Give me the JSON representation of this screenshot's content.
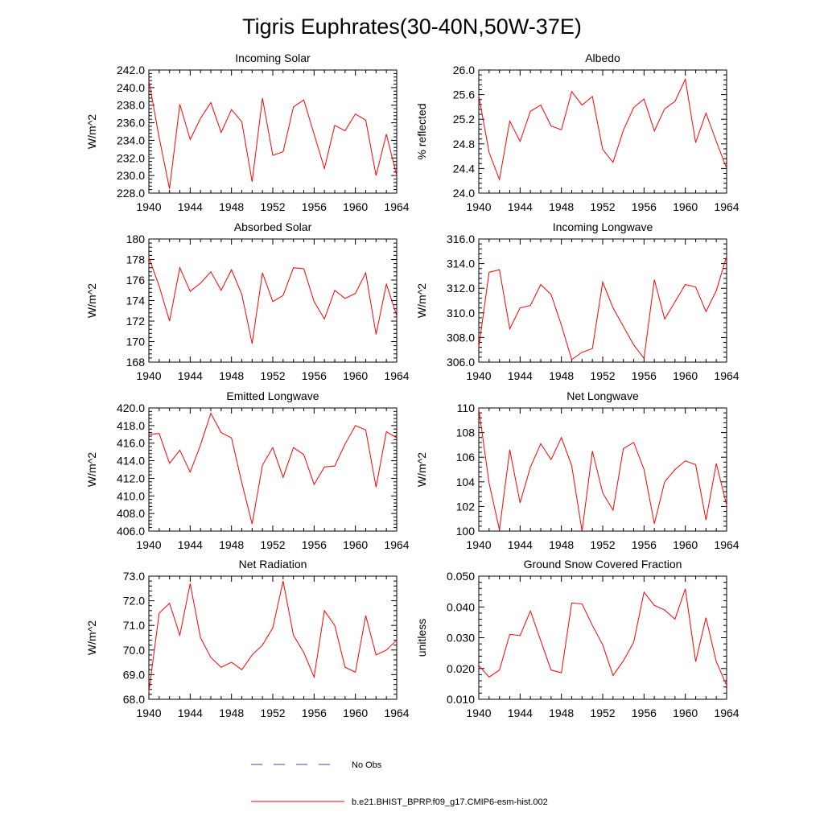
{
  "figure": {
    "title": "Tigris Euphrates(30-40N,50W-37E)",
    "colors": {
      "model": "#ff0000",
      "obs": "#4040c0",
      "axis": "#000000"
    }
  },
  "legend": {
    "obs_label": "No Obs",
    "model_label": "b.e21.BHIST_BPRP.f09_g17.CMIP6-esm-hist.002"
  },
  "chart_data": [
    {
      "type": "line",
      "title": "Incoming Solar",
      "ylabel": "W/m^2",
      "xlim": [
        1940,
        1964
      ],
      "ylim": [
        228,
        242
      ],
      "xticks": [
        "1940",
        "1944",
        "1948",
        "1952",
        "1956",
        "1960",
        "1964"
      ],
      "yticks": [
        "228.0",
        "230.0",
        "232.0",
        "234.0",
        "236.0",
        "238.0",
        "240.0",
        "242.0"
      ],
      "x": [
        1940,
        1941,
        1942,
        1943,
        1944,
        1945,
        1946,
        1947,
        1948,
        1949,
        1950,
        1951,
        1952,
        1953,
        1954,
        1955,
        1956,
        1957,
        1958,
        1959,
        1960,
        1961,
        1962,
        1963,
        1964
      ],
      "series": [
        {
          "values": [
            240.8,
            234.3,
            228.5,
            238.1,
            234.1,
            236.5,
            238.3,
            234.9,
            237.5,
            236.1,
            229.3,
            238.8,
            232.3,
            232.7,
            237.8,
            238.6,
            234.7,
            230.8,
            235.7,
            235.1,
            237.0,
            236.3,
            230.0,
            234.7,
            230.0
          ]
        }
      ]
    },
    {
      "type": "line",
      "title": "Albedo",
      "ylabel": "% reflected",
      "xlim": [
        1940,
        1964
      ],
      "ylim": [
        24.0,
        26.0
      ],
      "xticks": [
        "1940",
        "1944",
        "1948",
        "1952",
        "1956",
        "1960",
        "1964"
      ],
      "yticks": [
        "24.0",
        "24.4",
        "24.8",
        "25.2",
        "25.6",
        "26.0"
      ],
      "x": [
        1940,
        1941,
        1942,
        1943,
        1944,
        1945,
        1946,
        1947,
        1948,
        1949,
        1950,
        1951,
        1952,
        1953,
        1954,
        1955,
        1956,
        1957,
        1958,
        1959,
        1960,
        1961,
        1962,
        1963,
        1964
      ],
      "series": [
        {
          "values": [
            25.58,
            24.66,
            24.22,
            25.17,
            24.84,
            25.33,
            25.43,
            25.09,
            25.03,
            25.65,
            25.43,
            25.57,
            24.71,
            24.5,
            25.02,
            25.39,
            25.53,
            25.01,
            25.37,
            25.49,
            25.85,
            24.82,
            25.3,
            24.84,
            24.4
          ]
        }
      ]
    },
    {
      "type": "line",
      "title": "Absorbed Solar",
      "ylabel": "W/m^2",
      "xlim": [
        1940,
        1964
      ],
      "ylim": [
        168,
        180
      ],
      "xticks": [
        "1940",
        "1944",
        "1948",
        "1952",
        "1956",
        "1960",
        "1964"
      ],
      "yticks": [
        "168",
        "170",
        "172",
        "174",
        "176",
        "178",
        "180"
      ],
      "x": [
        1940,
        1941,
        1942,
        1943,
        1944,
        1945,
        1946,
        1947,
        1948,
        1949,
        1950,
        1951,
        1952,
        1953,
        1954,
        1955,
        1956,
        1957,
        1958,
        1959,
        1960,
        1961,
        1962,
        1963,
        1964
      ],
      "series": [
        {
          "values": [
            178.2,
            175.4,
            172.0,
            177.2,
            174.9,
            175.7,
            176.8,
            175.0,
            177.0,
            174.6,
            169.8,
            176.7,
            173.9,
            174.5,
            177.2,
            177.1,
            173.9,
            172.2,
            175.0,
            174.2,
            174.7,
            176.7,
            170.7,
            175.6,
            172.5
          ]
        }
      ]
    },
    {
      "type": "line",
      "title": "Incoming Longwave",
      "ylabel": "W/m^2",
      "xlim": [
        1940,
        1964
      ],
      "ylim": [
        306.0,
        316.0
      ],
      "xticks": [
        "1940",
        "1944",
        "1948",
        "1952",
        "1956",
        "1960",
        "1964"
      ],
      "yticks": [
        "306.0",
        "308.0",
        "310.0",
        "312.0",
        "314.0",
        "316.0"
      ],
      "x": [
        1940,
        1941,
        1942,
        1943,
        1944,
        1945,
        1946,
        1947,
        1948,
        1949,
        1950,
        1951,
        1952,
        1953,
        1954,
        1955,
        1956,
        1957,
        1958,
        1959,
        1960,
        1961,
        1962,
        1963,
        1964
      ],
      "series": [
        {
          "values": [
            307.2,
            313.3,
            313.5,
            308.7,
            310.4,
            310.6,
            312.3,
            311.5,
            309.0,
            306.2,
            306.8,
            307.1,
            312.5,
            310.4,
            308.9,
            307.4,
            306.3,
            312.7,
            309.5,
            310.9,
            312.3,
            312.1,
            310.1,
            311.8,
            314.6
          ]
        }
      ]
    },
    {
      "type": "line",
      "title": "Emitted Longwave",
      "ylabel": "W/m^2",
      "xlim": [
        1940,
        1964
      ],
      "ylim": [
        406.0,
        420.0
      ],
      "xticks": [
        "1940",
        "1944",
        "1948",
        "1952",
        "1956",
        "1960",
        "1964"
      ],
      "yticks": [
        "406.0",
        "408.0",
        "410.0",
        "412.0",
        "414.0",
        "416.0",
        "418.0",
        "420.0"
      ],
      "x": [
        1940,
        1941,
        1942,
        1943,
        1944,
        1945,
        1946,
        1947,
        1948,
        1949,
        1950,
        1951,
        1952,
        1953,
        1954,
        1955,
        1956,
        1957,
        1958,
        1959,
        1960,
        1961,
        1962,
        1963,
        1964
      ],
      "series": [
        {
          "values": [
            417.0,
            417.1,
            413.7,
            415.2,
            412.7,
            415.8,
            419.4,
            417.2,
            416.6,
            411.5,
            406.8,
            413.5,
            415.5,
            412.1,
            415.5,
            414.7,
            411.3,
            413.3,
            413.4,
            415.9,
            418.0,
            417.5,
            411.0,
            417.3,
            416.6
          ]
        }
      ]
    },
    {
      "type": "line",
      "title": "Net Longwave",
      "ylabel": "W/m^2",
      "xlim": [
        1940,
        1964
      ],
      "ylim": [
        100,
        110
      ],
      "xticks": [
        "1940",
        "1944",
        "1948",
        "1952",
        "1956",
        "1960",
        "1964"
      ],
      "yticks": [
        "100",
        "102",
        "104",
        "106",
        "108",
        "110"
      ],
      "x": [
        1940,
        1941,
        1942,
        1943,
        1944,
        1945,
        1946,
        1947,
        1948,
        1949,
        1950,
        1951,
        1952,
        1953,
        1954,
        1955,
        1956,
        1957,
        1958,
        1959,
        1960,
        1961,
        1962,
        1963,
        1964
      ],
      "series": [
        {
          "values": [
            109.9,
            103.9,
            100.1,
            106.6,
            102.3,
            105.2,
            107.1,
            105.8,
            107.6,
            105.3,
            100.0,
            106.5,
            103.1,
            101.7,
            106.7,
            107.2,
            105.0,
            100.6,
            104.0,
            105.0,
            105.7,
            105.4,
            100.9,
            105.5,
            102.1
          ]
        }
      ]
    },
    {
      "type": "line",
      "title": "Net Radiation",
      "ylabel": "W/m^2",
      "xlim": [
        1940,
        1964
      ],
      "ylim": [
        68.0,
        73.0
      ],
      "xticks": [
        "1940",
        "1944",
        "1948",
        "1952",
        "1956",
        "1960",
        "1964"
      ],
      "yticks": [
        "68.0",
        "69.0",
        "70.0",
        "71.0",
        "72.0",
        "73.0"
      ],
      "x": [
        1940,
        1941,
        1942,
        1943,
        1944,
        1945,
        1946,
        1947,
        1948,
        1949,
        1950,
        1951,
        1952,
        1953,
        1954,
        1955,
        1956,
        1957,
        1958,
        1959,
        1960,
        1961,
        1962,
        1963,
        1964
      ],
      "series": [
        {
          "values": [
            68.3,
            71.5,
            71.9,
            70.6,
            72.7,
            70.5,
            69.7,
            69.3,
            69.5,
            69.2,
            69.8,
            70.2,
            70.9,
            72.8,
            70.6,
            69.9,
            68.9,
            71.6,
            71.0,
            69.3,
            69.1,
            71.4,
            69.8,
            70.0,
            70.4
          ]
        }
      ]
    },
    {
      "type": "line",
      "title": "Ground Snow Covered Fraction",
      "ylabel": "unitless",
      "xlim": [
        1940,
        1964
      ],
      "ylim": [
        0.01,
        0.05
      ],
      "xticks": [
        "1940",
        "1944",
        "1948",
        "1952",
        "1956",
        "1960",
        "1964"
      ],
      "yticks": [
        "0.010",
        "0.020",
        "0.030",
        "0.040",
        "0.050"
      ],
      "x": [
        1940,
        1941,
        1942,
        1943,
        1944,
        1945,
        1946,
        1947,
        1948,
        1949,
        1950,
        1951,
        1952,
        1953,
        1954,
        1955,
        1956,
        1957,
        1958,
        1959,
        1960,
        1961,
        1962,
        1963,
        1964
      ],
      "series": [
        {
          "values": [
            0.021,
            0.0172,
            0.0195,
            0.0311,
            0.0307,
            0.0387,
            0.029,
            0.0195,
            0.0186,
            0.0413,
            0.041,
            0.034,
            0.0277,
            0.0177,
            0.0225,
            0.0285,
            0.0448,
            0.0405,
            0.039,
            0.036,
            0.0459,
            0.0222,
            0.0365,
            0.0222,
            0.0145
          ]
        }
      ]
    }
  ]
}
